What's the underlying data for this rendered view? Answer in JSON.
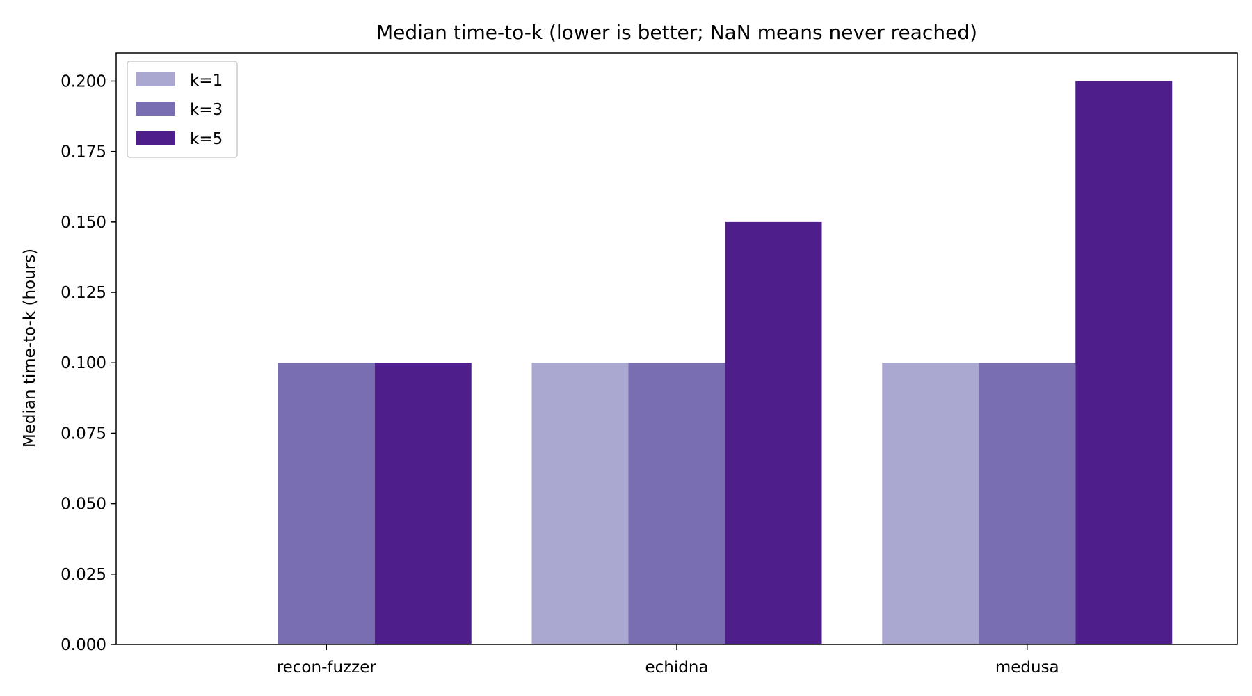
{
  "chart_data": {
    "type": "bar",
    "title": "Median time-to-k (lower is better; NaN means never reached)",
    "xlabel": "",
    "ylabel": "Median time-to-k (hours)",
    "categories": [
      "recon-fuzzer",
      "echidna",
      "medusa"
    ],
    "series": [
      {
        "name": "k=1",
        "color": "#aaa8d0",
        "values": [
          null,
          0.1,
          0.1
        ]
      },
      {
        "name": "k=3",
        "color": "#786eb0",
        "values": [
          0.1,
          0.1,
          0.1
        ]
      },
      {
        "name": "k=5",
        "color": "#4e1f8a",
        "values": [
          0.1,
          0.15,
          0.2
        ]
      }
    ],
    "ylim": [
      0,
      0.21
    ],
    "yticks": [
      "0.000",
      "0.025",
      "0.050",
      "0.075",
      "0.100",
      "0.125",
      "0.150",
      "0.175",
      "0.200"
    ],
    "ytick_values": [
      0,
      0.025,
      0.05,
      0.075,
      0.1,
      0.125,
      0.15,
      0.175,
      0.2
    ],
    "grid": false,
    "legend_position": "top-left"
  }
}
